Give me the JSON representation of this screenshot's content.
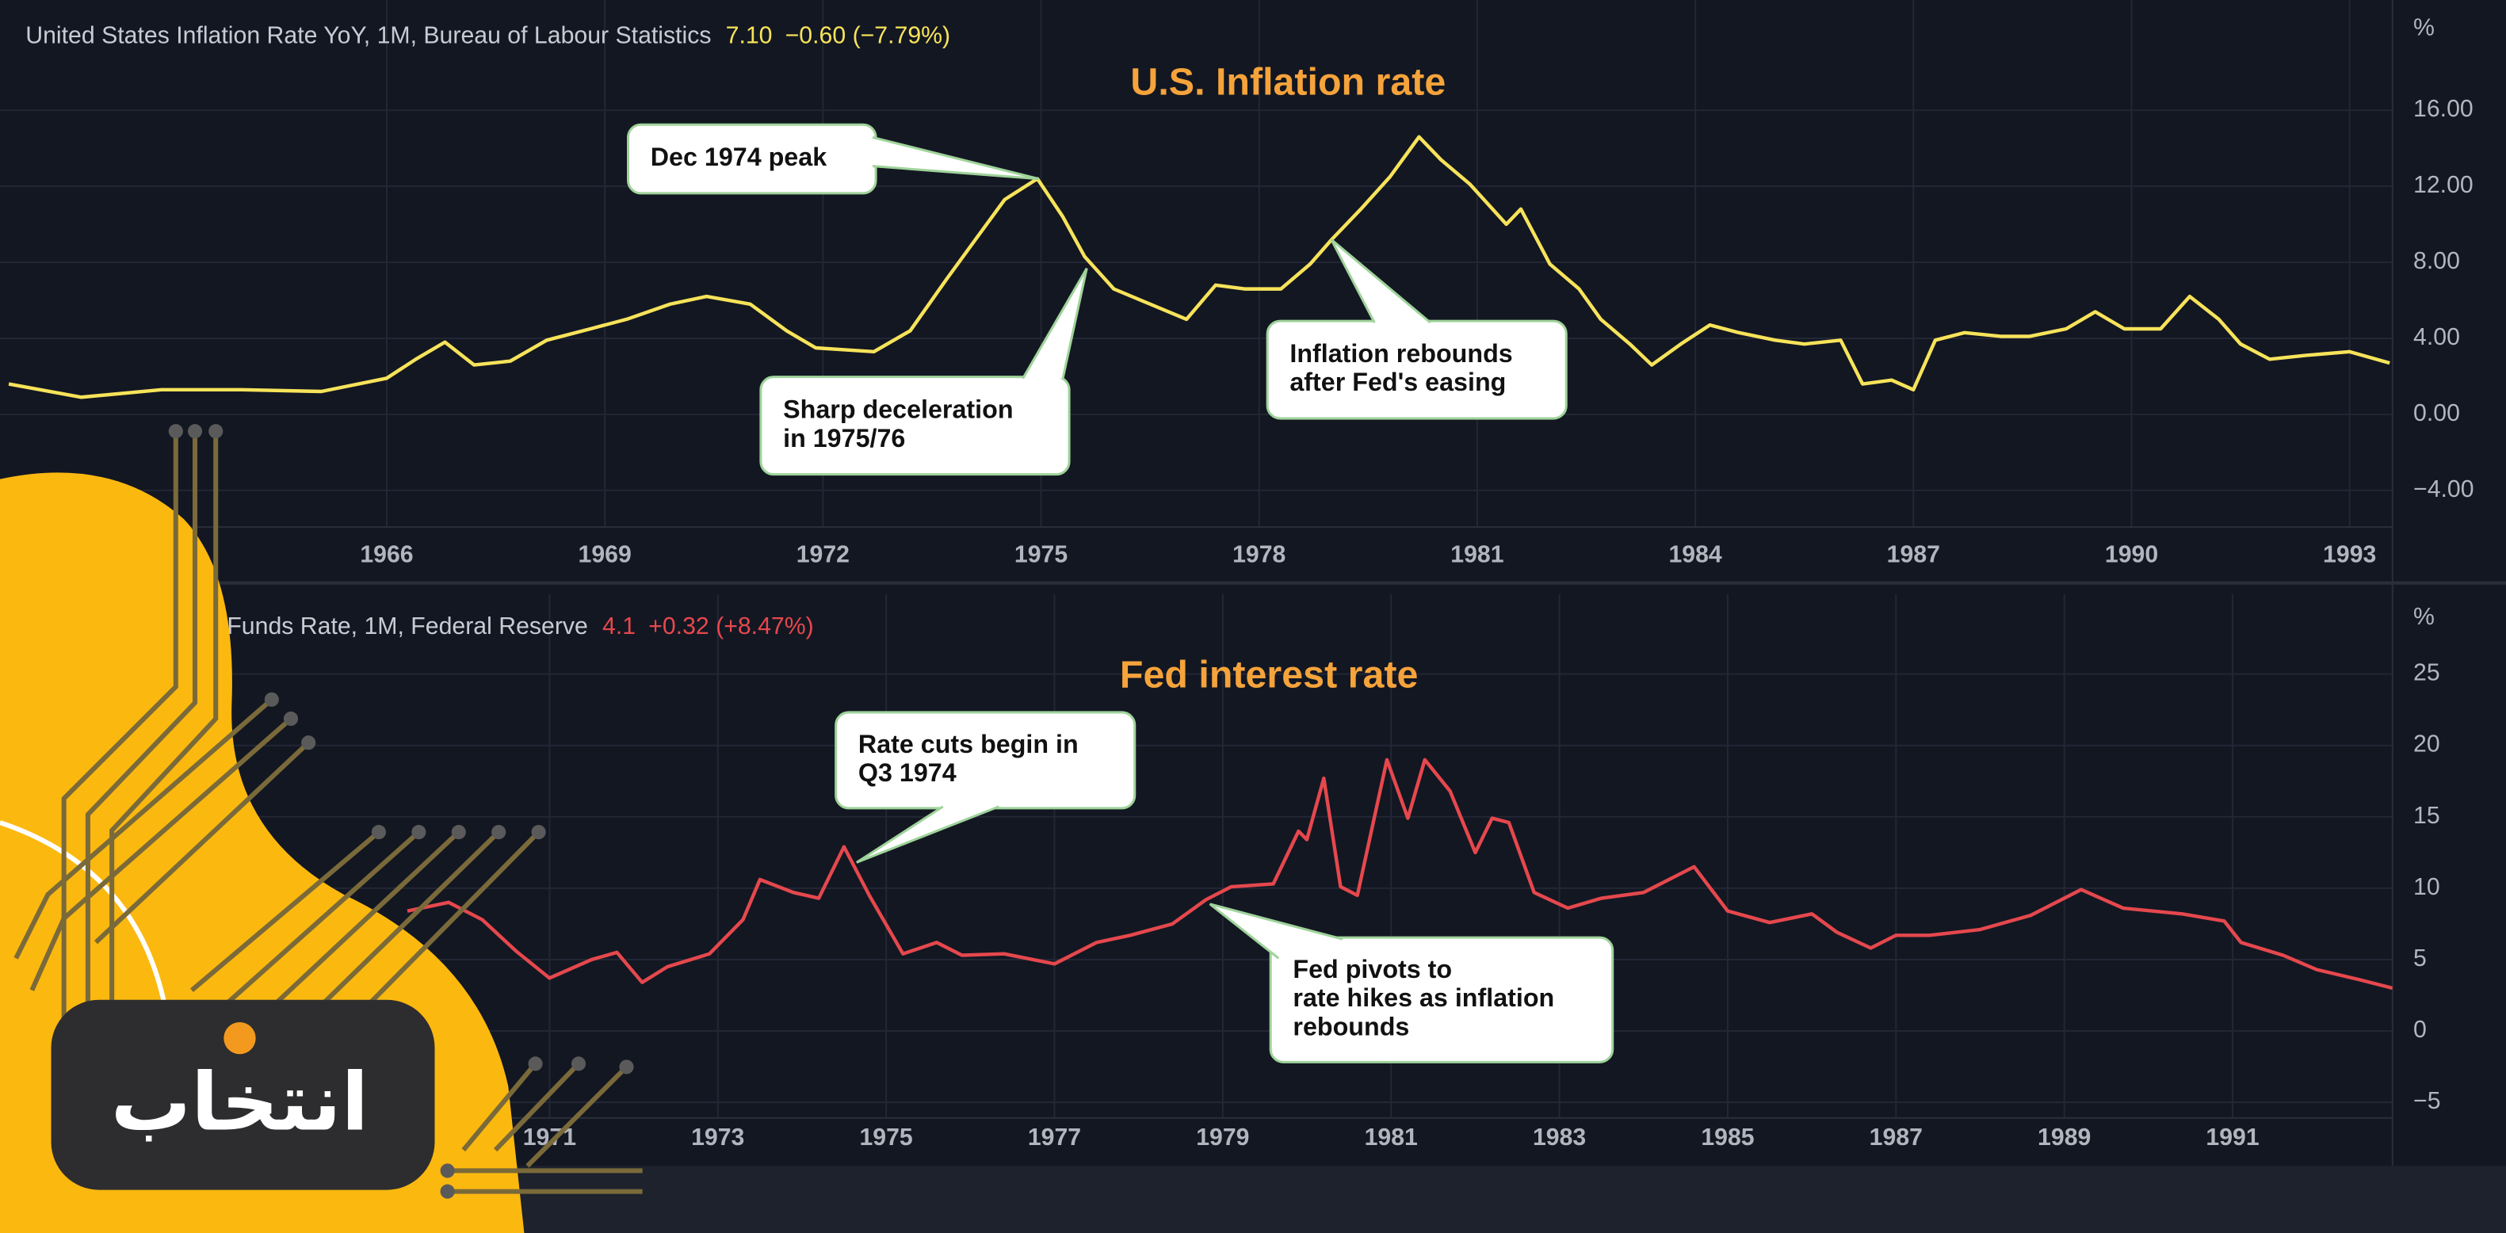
{
  "chart_data": [
    {
      "type": "line",
      "title": "U.S. Inflation rate",
      "y_unit": "%",
      "xlim": [
        1960.68,
        1993.59
      ],
      "ylim": [
        -5.93,
        21.8
      ],
      "xticks": [
        1966,
        1969,
        1972,
        1975,
        1978,
        1981,
        1984,
        1987,
        1990,
        1993
      ],
      "yticks": [
        {
          "value": 16,
          "label": "16.00"
        },
        {
          "value": 12,
          "label": "12.00"
        },
        {
          "value": 8,
          "label": "8.00"
        },
        {
          "value": 4,
          "label": "4.00"
        },
        {
          "value": 0,
          "label": "0.00"
        },
        {
          "value": -4,
          "label": "−4.00"
        }
      ],
      "grid": true,
      "x": [
        1960.8,
        1961.8,
        1962.9,
        1964.0,
        1965.1,
        1966.0,
        1966.4,
        1966.8,
        1967.2,
        1967.7,
        1968.2,
        1968.8,
        1969.3,
        1969.9,
        1970.4,
        1971.0,
        1971.5,
        1971.9,
        1972.3,
        1972.7,
        1973.2,
        1973.7,
        1974.1,
        1974.5,
        1974.95,
        1975.3,
        1975.6,
        1976.0,
        1976.5,
        1977.0,
        1977.4,
        1977.8,
        1978.3,
        1978.7,
        1979.0,
        1979.4,
        1979.8,
        1980.2,
        1980.5,
        1980.9,
        1981.4,
        1981.6,
        1982.0,
        1982.4,
        1982.7,
        1983.1,
        1983.4,
        1983.8,
        1984.2,
        1984.6,
        1985.1,
        1985.5,
        1986.0,
        1986.3,
        1986.7,
        1987.0,
        1987.3,
        1987.7,
        1988.2,
        1988.6,
        1989.1,
        1989.5,
        1989.9,
        1990.4,
        1990.8,
        1991.2,
        1991.5,
        1991.9,
        1992.4,
        1993.0,
        1993.55
      ],
      "series": [
        {
          "name": "United States Inflation Rate YoY, 1M, Bureau of Labour Statistics",
          "color": "#f7e35a",
          "last": {
            "value": 7.1,
            "label": "7.10"
          },
          "change": "−0.60 (−7.79%)",
          "values": [
            1.6,
            0.9,
            1.3,
            1.3,
            1.2,
            1.9,
            2.9,
            3.8,
            2.6,
            2.8,
            3.9,
            4.5,
            5.0,
            5.8,
            6.2,
            5.8,
            4.4,
            3.5,
            3.4,
            3.3,
            4.4,
            7.1,
            9.2,
            11.3,
            12.4,
            10.4,
            8.3,
            6.6,
            5.8,
            5.0,
            6.8,
            6.6,
            6.6,
            7.9,
            9.2,
            10.8,
            12.5,
            14.6,
            13.4,
            12.1,
            10.0,
            10.8,
            7.9,
            6.6,
            5.0,
            3.7,
            2.6,
            3.7,
            4.7,
            4.3,
            3.9,
            3.7,
            3.9,
            1.6,
            1.8,
            1.3,
            3.9,
            4.3,
            4.1,
            4.1,
            4.5,
            5.4,
            4.5,
            4.5,
            6.2,
            5.0,
            3.7,
            2.9,
            3.1,
            3.3,
            2.7
          ]
        }
      ],
      "annotations": [
        {
          "lines": [
            "Dec 1974 peak"
          ]
        },
        {
          "lines": [
            "Sharp deceleration",
            "in 1975/76"
          ]
        },
        {
          "lines": [
            "Inflation rebounds",
            "after Fed's easing"
          ]
        }
      ]
    },
    {
      "type": "line",
      "title": "Fed interest rate",
      "y_unit": "%",
      "xlim": [
        1964.47,
        1992.9
      ],
      "ylim": [
        -6.1,
        30.6
      ],
      "xticks": [
        1971,
        1973,
        1975,
        1977,
        1979,
        1981,
        1983,
        1985,
        1987,
        1989,
        1991
      ],
      "yticks": [
        25,
        20,
        15,
        10,
        5,
        0,
        {
          "value": -5,
          "label": "−5"
        }
      ],
      "grid": true,
      "x": [
        1969.31,
        1969.8,
        1970.2,
        1970.6,
        1971.0,
        1971.5,
        1971.8,
        1972.1,
        1972.4,
        1972.9,
        1973.3,
        1973.5,
        1973.9,
        1974.2,
        1974.5,
        1974.8,
        1975.2,
        1975.6,
        1975.9,
        1976.4,
        1977.0,
        1977.5,
        1977.9,
        1978.4,
        1978.8,
        1979.1,
        1979.6,
        1979.9,
        1980.0,
        1980.2,
        1980.4,
        1980.6,
        1980.95,
        1981.2,
        1981.4,
        1981.7,
        1982.0,
        1982.2,
        1982.4,
        1982.7,
        1983.1,
        1983.5,
        1984.0,
        1984.6,
        1985.0,
        1985.5,
        1986.0,
        1986.3,
        1986.7,
        1987.0,
        1987.4,
        1988.0,
        1988.6,
        1989.2,
        1989.7,
        1990.4,
        1990.9,
        1991.1,
        1991.6,
        1992.0,
        1992.5,
        1992.9
      ],
      "series": [
        {
          "name": "Funds Rate, 1M, Federal Reserve",
          "color": "#e5484d",
          "last": 4.1,
          "change": "+0.32 (+8.47%)",
          "values": [
            8.4,
            9.0,
            7.8,
            5.6,
            3.7,
            5.0,
            5.5,
            3.4,
            4.5,
            5.4,
            7.8,
            10.6,
            9.7,
            9.3,
            12.9,
            9.5,
            5.4,
            6.2,
            5.3,
            5.4,
            4.7,
            6.2,
            6.7,
            7.5,
            9.2,
            10.1,
            10.3,
            14.0,
            13.4,
            17.7,
            10.1,
            9.5,
            19.0,
            14.9,
            19.0,
            16.8,
            12.5,
            14.9,
            14.6,
            9.7,
            8.6,
            9.3,
            9.7,
            11.5,
            8.4,
            7.6,
            8.2,
            6.9,
            5.8,
            6.7,
            6.7,
            7.1,
            8.1,
            9.9,
            8.6,
            8.2,
            7.7,
            6.2,
            5.3,
            4.3,
            3.6,
            3.0
          ]
        }
      ],
      "annotations": [
        {
          "lines": [
            "Rate cuts begin in",
            "Q3 1974"
          ]
        },
        {
          "lines": [
            "Fed pivots to",
            "rate hikes as inflation",
            "rebounds"
          ]
        }
      ]
    }
  ],
  "watermark": "انتخاب"
}
